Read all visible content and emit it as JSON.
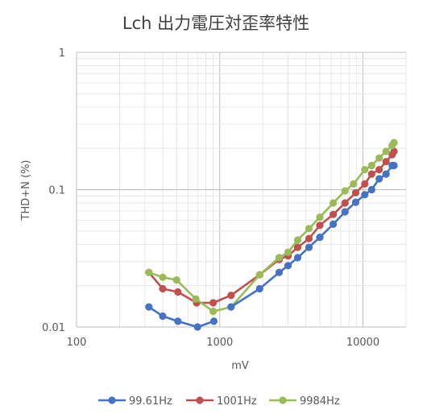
{
  "chart_data": {
    "type": "line",
    "title": "Lch 出力電圧対歪率特性",
    "xlabel": "mV",
    "ylabel": "THD+N (%)",
    "x_scale": "log",
    "y_scale": "log",
    "xlim": [
      100,
      20000
    ],
    "ylim": [
      0.01,
      1
    ],
    "x_ticks": [
      {
        "value": 100,
        "label": "100"
      },
      {
        "value": 1000,
        "label": "1000"
      },
      {
        "value": 10000,
        "label": "10000"
      }
    ],
    "y_ticks": [
      {
        "value": 1,
        "label": "1"
      },
      {
        "value": 0.1,
        "label": "0.1"
      },
      {
        "value": 0.01,
        "label": "0.01"
      }
    ],
    "grid": true,
    "legend": "bottom",
    "series": [
      {
        "name": "99.61Hz",
        "color": "#4472c4",
        "points": [
          [
            320,
            0.014
          ],
          [
            400,
            0.012
          ],
          [
            510,
            0.011
          ],
          [
            700,
            0.01
          ],
          [
            910,
            0.011
          ]
        ]
      },
      {
        "name": "1001Hz",
        "color": "#c0504d",
        "points": [
          [
            320,
            0.025
          ],
          [
            400,
            0.019
          ],
          [
            510,
            0.018
          ],
          [
            690,
            0.015
          ],
          [
            900,
            0.015
          ],
          [
            1200,
            0.017
          ],
          [
            1900,
            0.024
          ],
          [
            2600,
            0.031
          ],
          [
            3000,
            0.033
          ],
          [
            3500,
            0.038
          ],
          [
            4200,
            0.044
          ],
          [
            5000,
            0.055
          ],
          [
            6200,
            0.066
          ],
          [
            7500,
            0.08
          ],
          [
            8900,
            0.095
          ],
          [
            10300,
            0.11
          ],
          [
            11500,
            0.13
          ],
          [
            13000,
            0.14
          ],
          [
            14500,
            0.16
          ],
          [
            16000,
            0.18
          ],
          [
            16500,
            0.19
          ]
        ]
      },
      {
        "name": "9984Hz",
        "color": "#9bbb59",
        "points": [
          [
            320,
            0.025
          ],
          [
            400,
            0.023
          ],
          [
            500,
            0.022
          ],
          [
            680,
            0.016
          ],
          [
            900,
            0.013
          ],
          [
            1200,
            0.014
          ],
          [
            1900,
            0.024
          ],
          [
            2600,
            0.032
          ],
          [
            3000,
            0.035
          ],
          [
            3500,
            0.043
          ],
          [
            4200,
            0.052
          ],
          [
            5000,
            0.063
          ],
          [
            6200,
            0.08
          ],
          [
            7500,
            0.098
          ],
          [
            8600,
            0.11
          ],
          [
            10300,
            0.14
          ],
          [
            11500,
            0.15
          ],
          [
            13000,
            0.17
          ],
          [
            14500,
            0.19
          ],
          [
            16000,
            0.21
          ],
          [
            16500,
            0.22
          ]
        ]
      },
      {
        "name": "99.61Hz",
        "color": "#4472c4",
        "points": [
          [
            1200,
            0.014
          ],
          [
            1900,
            0.019
          ],
          [
            2600,
            0.025
          ],
          [
            3000,
            0.028
          ],
          [
            3500,
            0.032
          ],
          [
            4200,
            0.038
          ],
          [
            5000,
            0.045
          ],
          [
            6200,
            0.056
          ],
          [
            7500,
            0.069
          ],
          [
            8900,
            0.081
          ],
          [
            10300,
            0.092
          ],
          [
            11500,
            0.1
          ],
          [
            13000,
            0.12
          ],
          [
            14500,
            0.13
          ],
          [
            16000,
            0.15
          ],
          [
            16500,
            0.15
          ]
        ],
        "continuation": true
      }
    ]
  }
}
